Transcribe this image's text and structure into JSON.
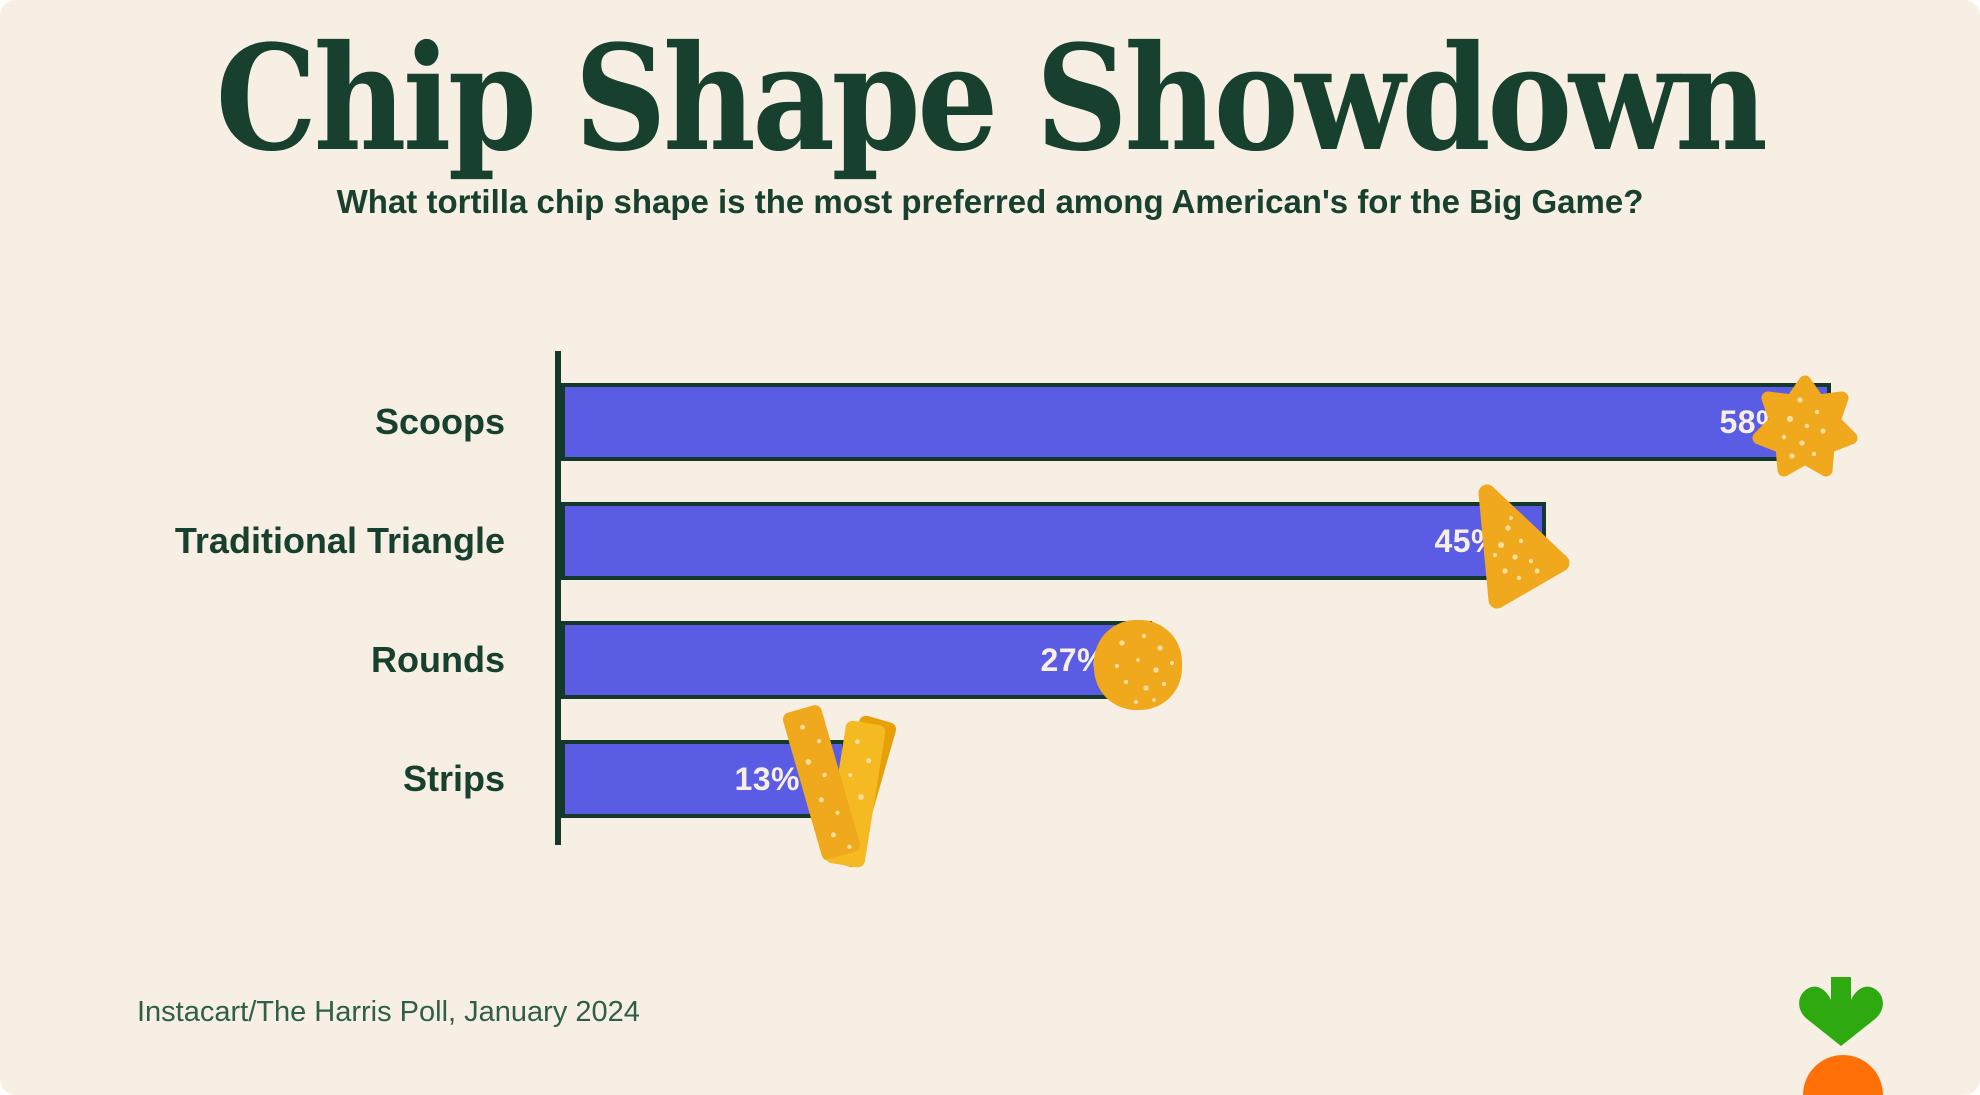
{
  "page": {
    "title": "Chip Shape Showdown",
    "subtitle": "What tortilla chip shape is the most preferred among American's for the Big Game?",
    "source": "Instacart/The Harris Poll, January 2024"
  },
  "colors": {
    "background": "#F7EFE3",
    "text_green": "#17402E",
    "bar_fill": "#5B5CE4",
    "bar_border": "#14392A",
    "value_label": "#F7EFE3",
    "chip_gold": "#F0A81C",
    "chip_gold_light": "#F5BA22",
    "chip_gold_dark": "#E8A008",
    "chip_speckle": "#F8DFA0",
    "source_text": "#2F5F47",
    "logo_green": "#2EA90F",
    "logo_orange": "#FF7009"
  },
  "chart_data": {
    "type": "bar",
    "orientation": "horizontal",
    "title": "Chip Shape Showdown",
    "categories": [
      "Scoops",
      "Traditional Triangle",
      "Rounds",
      "Strips"
    ],
    "values": [
      58,
      45,
      27,
      13
    ],
    "value_labels": [
      "58%",
      "45%",
      "27%",
      "13%"
    ],
    "icons": [
      "scoop-chip-icon",
      "triangle-chip-icon",
      "round-chip-icon",
      "strips-chip-icon"
    ],
    "unit": "percent",
    "xlim": [
      0,
      63
    ],
    "grid": false,
    "legend": "none",
    "xlabel": "",
    "ylabel": ""
  },
  "logo": {
    "name": "instacart-carrot-logo"
  }
}
